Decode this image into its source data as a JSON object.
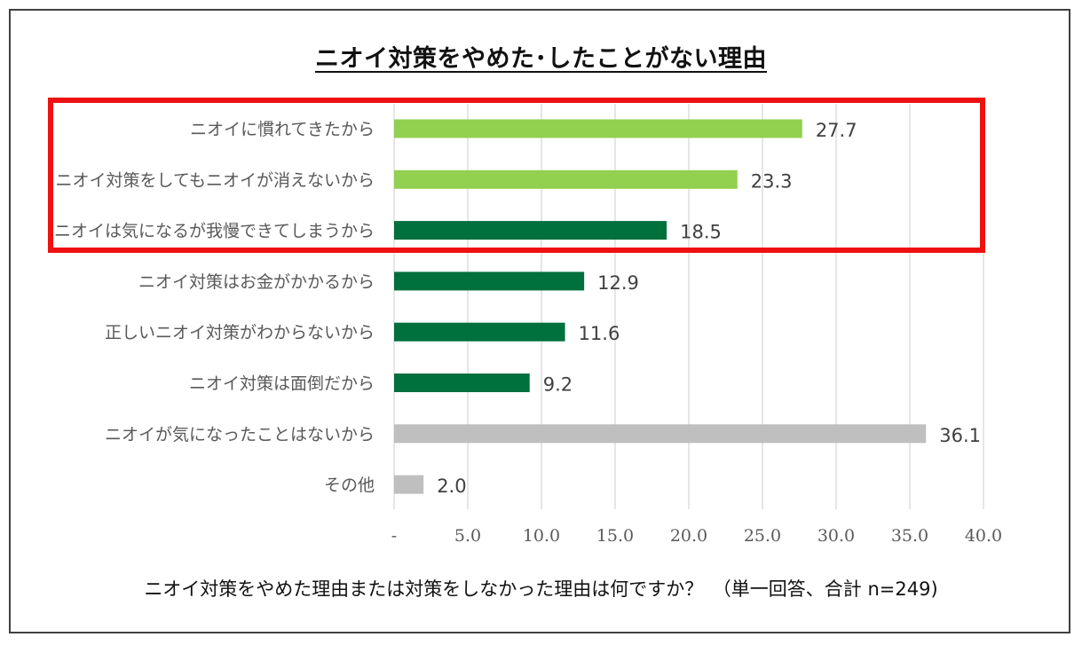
{
  "chart_data": {
    "type": "bar",
    "orientation": "horizontal",
    "title": "ニオイ対策をやめた･したことがない理由",
    "categories": [
      "ニオイに慣れてきたから",
      "ニオイ対策をしてもニオイが消えないから",
      "ニオイは気になるが我慢できてしまうから",
      "ニオイ対策はお金がかかるから",
      "正しいニオイ対策がわからないから",
      "ニオイ対策は面倒だから",
      "ニオイが気になったことはないから",
      "その他"
    ],
    "values": [
      27.7,
      23.3,
      18.5,
      12.9,
      11.6,
      9.2,
      36.1,
      2.0
    ],
    "value_labels": [
      "27.7",
      "23.3",
      "18.5",
      "12.9",
      "11.6",
      "9.2",
      "36.1",
      "2.0"
    ],
    "bar_colors": [
      "#92d050",
      "#92d050",
      "#00703c",
      "#00703c",
      "#00703c",
      "#00703c",
      "#bfbfbf",
      "#bfbfbf"
    ],
    "x_ticks": [
      "-",
      "5.0",
      "10.0",
      "15.0",
      "20.0",
      "25.0",
      "30.0",
      "35.0",
      "40.0"
    ],
    "xlim": [
      0,
      40
    ],
    "grid": "vertical",
    "highlighted_categories": [
      0,
      1,
      2
    ],
    "highlight_color": "#ee1111",
    "xlabel": "",
    "ylabel": ""
  },
  "footnote": "ニオイ対策をやめた理由または対策をしなかった理由は何ですか？　（単一回答、合計 n=249)"
}
